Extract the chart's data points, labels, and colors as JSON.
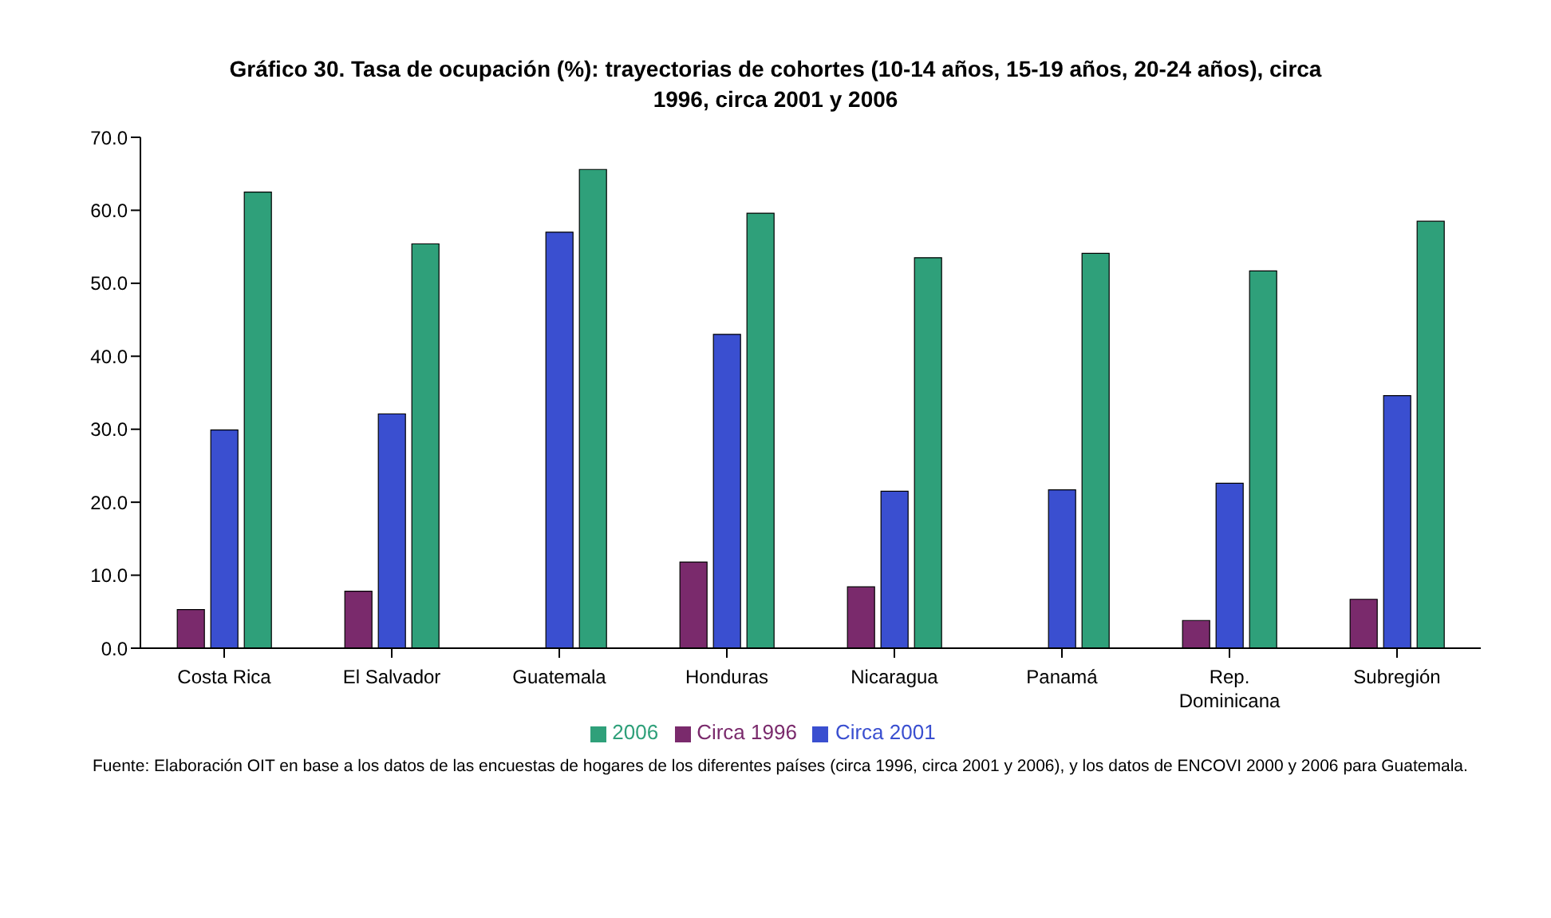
{
  "chart_data": {
    "type": "bar",
    "title": "Gráfico 30. Tasa de ocupación (%): trayectorias de cohortes (10-14 años, 15-19 años, 20-24 años), circa 1996, circa 2001 y 2006",
    "categories": [
      "Costa Rica",
      "El Salvador",
      "Guatemala",
      "Honduras",
      "Nicaragua",
      "Panamá",
      "Rep. Dominicana",
      "Subregión"
    ],
    "series": [
      {
        "name": "Circa 1996",
        "color": "#7a2a6c",
        "values": [
          5.3,
          7.8,
          null,
          11.8,
          8.4,
          null,
          3.8,
          6.7
        ]
      },
      {
        "name": "Circa 2001",
        "color": "#3a4fd0",
        "values": [
          29.9,
          32.1,
          57.0,
          43.0,
          21.5,
          21.7,
          22.6,
          34.6
        ]
      },
      {
        "name": "2006",
        "color": "#2fa07a",
        "values": [
          62.5,
          55.4,
          65.6,
          59.6,
          53.5,
          54.1,
          51.7,
          58.5
        ]
      }
    ],
    "ylim": [
      0,
      70
    ],
    "yticks": [
      {
        "value": 0,
        "label": "0.0"
      },
      {
        "value": 10,
        "label": "10.0"
      },
      {
        "value": 20,
        "label": "20.0"
      },
      {
        "value": 30,
        "label": "30.0"
      },
      {
        "value": 40,
        "label": "40.0"
      },
      {
        "value": 50,
        "label": "50.0"
      },
      {
        "value": 60,
        "label": "60.0"
      },
      {
        "value": 70,
        "label": "70.0"
      }
    ],
    "grid": false,
    "legend": "bottom",
    "annotations": [
      "Fuente: Elaboración OIT en base a los datos de las encuestas de hogares de los diferentes países (circa 1996, circa 2001 y 2006), y los datos de ENCOVI 2000 y 2006 para Guatemala."
    ]
  }
}
